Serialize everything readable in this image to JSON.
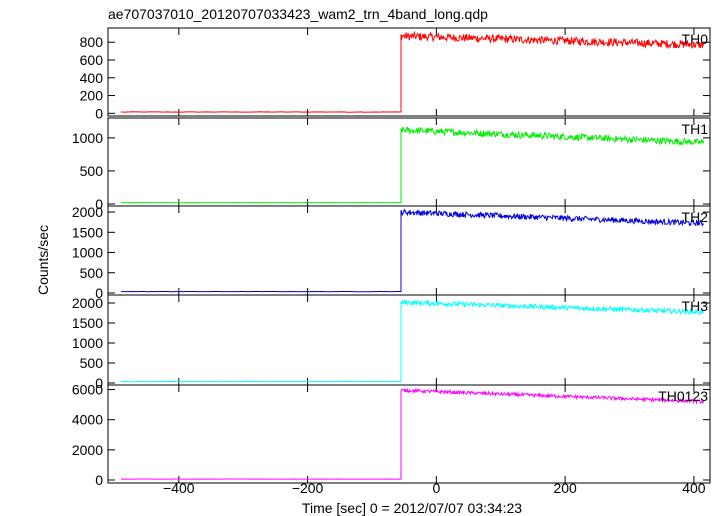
{
  "title": "ae707037010_20120707033423_wam2_trn_4band_long.qdp",
  "ylabel": "Counts/sec",
  "xlabel": "Time [sec] 0 = 2012/07/07 03:34:23",
  "x_ticks": [
    -400,
    -200,
    0,
    200,
    400
  ],
  "chart_data": {
    "type": "line",
    "title": "ae707037010_20120707033423_wam2_trn_4band_long.qdp",
    "xlabel": "Time [sec] 0 = 2012/07/07 03:34:23",
    "ylabel": "Counts/sec",
    "xlim": [
      -510,
      425
    ],
    "x_data_range": [
      -490,
      415
    ],
    "step_time": -55,
    "grid": false,
    "panels": [
      {
        "name": "TH0",
        "color": "#ff0000",
        "ylim": [
          -30,
          960
        ],
        "yticks": [
          0,
          200,
          400,
          600,
          800
        ],
        "baseline": 15,
        "start_level": 870,
        "end_level": 770,
        "noise": 45
      },
      {
        "name": "TH1",
        "color": "#00ee00",
        "ylim": [
          -30,
          1300
        ],
        "yticks": [
          0,
          500,
          1000
        ],
        "baseline": 20,
        "start_level": 1120,
        "end_level": 930,
        "noise": 50
      },
      {
        "name": "TH2",
        "color": "#0000dd",
        "ylim": [
          -50,
          2150
        ],
        "yticks": [
          0,
          500,
          1000,
          1500,
          2000
        ],
        "baseline": 35,
        "start_level": 2000,
        "end_level": 1720,
        "noise": 70
      },
      {
        "name": "TH3",
        "color": "#00ffff",
        "ylim": [
          -50,
          2200
        ],
        "yticks": [
          0,
          500,
          1000,
          1500,
          2000
        ],
        "baseline": 35,
        "start_level": 2020,
        "end_level": 1770,
        "noise": 60
      },
      {
        "name": "TH0123",
        "color": "#ff00ff",
        "ylim": [
          -200,
          6300
        ],
        "yticks": [
          0,
          2000,
          4000,
          6000
        ],
        "baseline": 60,
        "start_level": 5950,
        "end_level": 5200,
        "noise": 110
      }
    ]
  }
}
